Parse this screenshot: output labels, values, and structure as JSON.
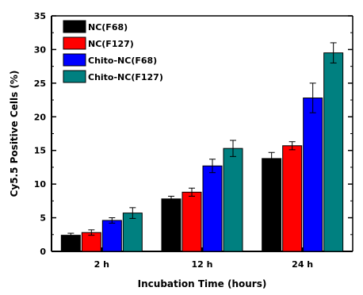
{
  "chart_data": {
    "type": "bar",
    "title": "",
    "xlabel": "Incubation Time (hours)",
    "ylabel": "Cy5.5 Positive Cells (%)",
    "categories": [
      "2 h",
      "12 h",
      "24 h"
    ],
    "ylim": [
      0,
      35
    ],
    "yticks": [
      "0",
      "5",
      "10",
      "15",
      "20",
      "25",
      "30",
      "35"
    ],
    "grid": false,
    "legend_position": "top-left",
    "series": [
      {
        "name": "NC(F68)",
        "color": "#000000",
        "values": [
          2.4,
          7.8,
          13.8
        ],
        "errors": [
          0.3,
          0.4,
          0.9
        ]
      },
      {
        "name": "NC(F127)",
        "color": "#ff0000",
        "values": [
          2.8,
          8.8,
          15.7
        ],
        "errors": [
          0.4,
          0.6,
          0.6
        ]
      },
      {
        "name": "Chito-NC(F68)",
        "color": "#0000ff",
        "values": [
          4.6,
          12.7,
          22.8
        ],
        "errors": [
          0.4,
          1.0,
          2.2
        ]
      },
      {
        "name": "Chito-NC(F127)",
        "color": "#008080",
        "values": [
          5.7,
          15.3,
          29.5
        ],
        "errors": [
          0.8,
          1.2,
          1.5
        ]
      }
    ]
  }
}
